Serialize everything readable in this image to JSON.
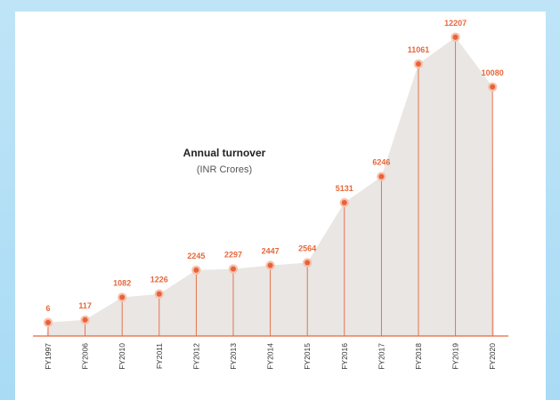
{
  "chart_data": {
    "type": "area",
    "title": "Annual turnover",
    "subtitle": "(INR Crores)",
    "categories": [
      "FY1997",
      "FY2006",
      "FY2010",
      "FY2011",
      "FY2012",
      "FY2013",
      "FY2014",
      "FY2015",
      "FY2016",
      "FY2017",
      "FY2018",
      "FY2019",
      "FY2020"
    ],
    "values": [
      6,
      117,
      1082,
      1226,
      2245,
      2297,
      2447,
      2564,
      5131,
      6246,
      11061,
      12207,
      10080
    ],
    "value_labels": [
      "6",
      "117",
      "1082",
      "1226",
      "2245",
      "2297",
      "2447",
      "2564",
      "5131",
      "6246",
      "11061",
      "12207",
      "10080"
    ],
    "grid": false,
    "legend": "none",
    "colors": {
      "area": "#e9e6e4",
      "line": "#e7673a",
      "marker": "#e8623a",
      "marker_halo": "#f6c2ac",
      "baseline": "#e7673a",
      "background": "#bfe4f7"
    }
  }
}
